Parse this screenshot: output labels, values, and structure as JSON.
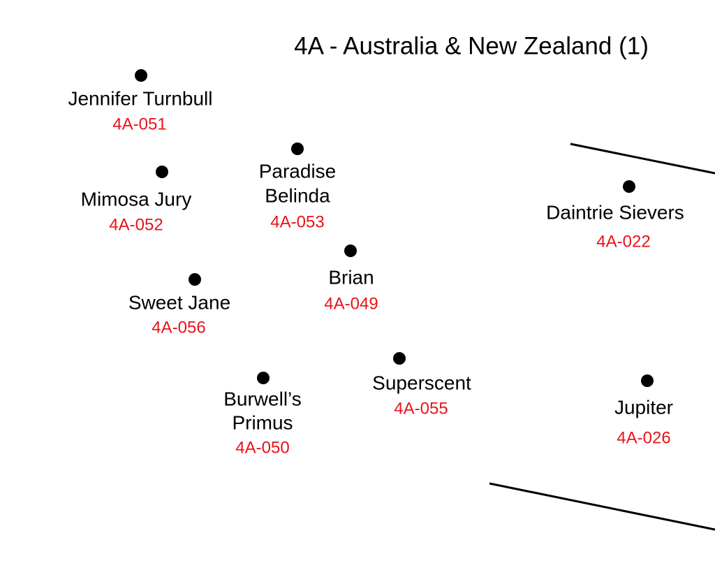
{
  "title": "4A - Australia & New Zealand (1)",
  "nodes": [
    {
      "name_lines": [
        "Jennifer Turnbull"
      ],
      "code": "4A-051"
    },
    {
      "name_lines": [
        "Mimosa Jury"
      ],
      "code": "4A-052"
    },
    {
      "name_lines": [
        "Paradise",
        "Belinda"
      ],
      "code": "4A-053"
    },
    {
      "name_lines": [
        "Daintrie Sievers"
      ],
      "code": "4A-022"
    },
    {
      "name_lines": [
        "Brian"
      ],
      "code": "4A-049"
    },
    {
      "name_lines": [
        "Sweet Jane"
      ],
      "code": "4A-056"
    },
    {
      "name_lines": [
        "Superscent"
      ],
      "code": "4A-055"
    },
    {
      "name_lines": [
        "Burwell’s",
        "Primus"
      ],
      "code": "4A-050"
    },
    {
      "name_lines": [
        "Jupiter"
      ],
      "code": "4A-026"
    }
  ]
}
